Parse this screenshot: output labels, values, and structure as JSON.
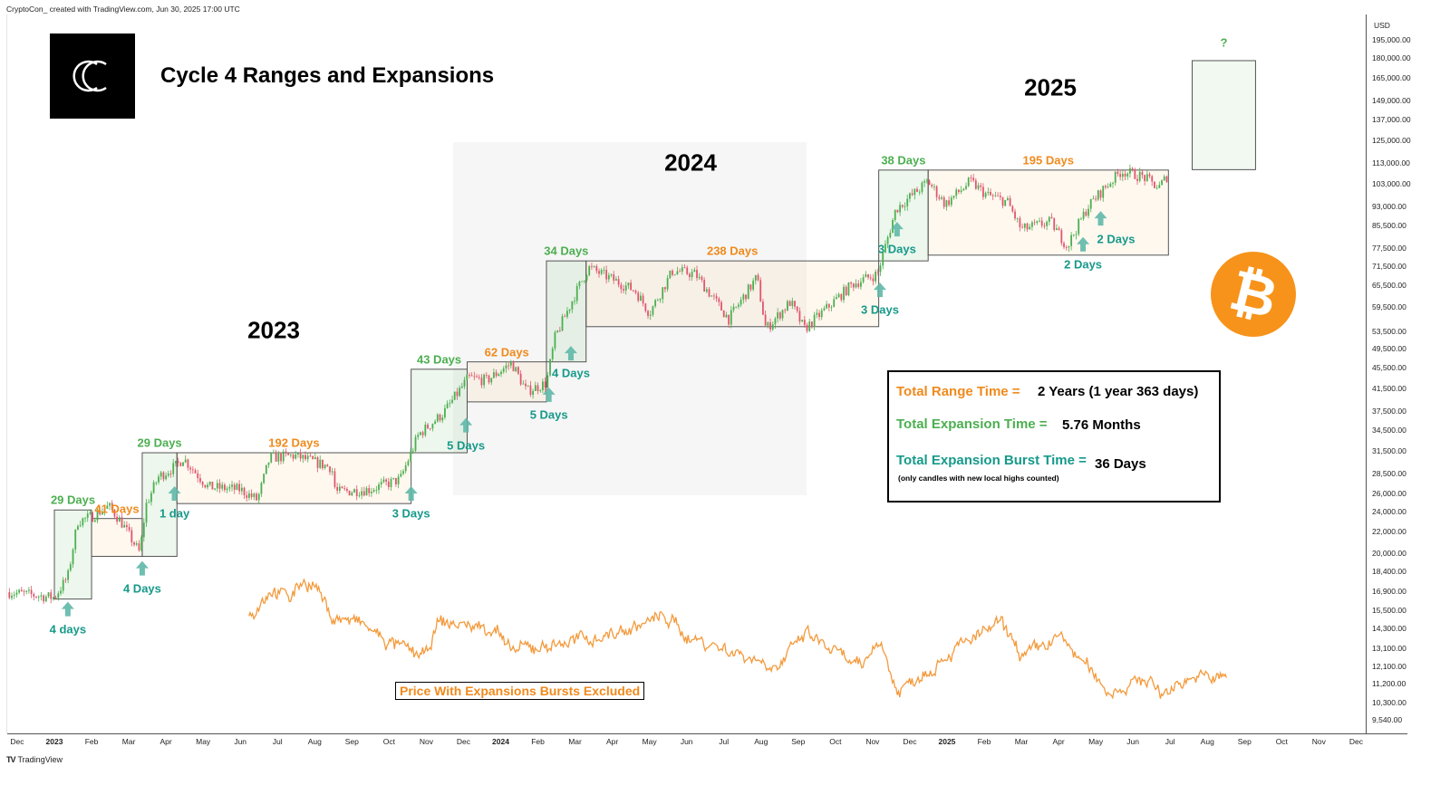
{
  "header": {
    "attribution": "CryptoCon_ created with TradingView.com, Jun 30, 2025 17:00 UTC"
  },
  "title": "Cycle 4 Ranges and Expansions",
  "year_labels": [
    "2023",
    "2024",
    "2025"
  ],
  "stats": {
    "range_label": "Total Range Time =",
    "range_value": "2 Years (1 year 363 days)",
    "expansion_label": "Total Expansion Time =",
    "expansion_value": "5.76 Months",
    "burst_label": "Total Expansion Burst Time =",
    "burst_value": "36 Days",
    "burst_note": "(only candles with new local highs counted)"
  },
  "colors": {
    "range": "#f08a1c",
    "expansion": "#4caf50",
    "burst": "#16998a",
    "up": "#4caf50",
    "down": "#e0566e",
    "excluded_line": "#f39a3c",
    "bitcoin": "#f7931a"
  },
  "icons": {
    "logo": "cryptocon-cc-logo",
    "bitcoin": "bitcoin-icon",
    "burst": "arrow-up-icon",
    "footer": "tradingview-logo"
  },
  "bitcoin_glyph": "₿",
  "footer": {
    "brand": "TradingView"
  },
  "chart_data": {
    "type": "candlestick",
    "title": "Cycle 4 Ranges and Expansions",
    "yaxis": {
      "unit": "USD",
      "scale": "log",
      "ticks": [
        195000,
        180000,
        165000,
        149000,
        137000,
        125000,
        113000,
        103000,
        93000,
        85500,
        77500,
        71500,
        65500,
        59500,
        53500,
        49500,
        45500,
        41500,
        37500,
        34500,
        31500,
        28500,
        26000,
        24000,
        22000,
        20000,
        18400,
        16900,
        15500,
        14300,
        13100,
        12100,
        11200,
        10300,
        9540
      ],
      "tick_labels": [
        "195,000.00",
        "180,000.00",
        "165,000.00",
        "149,000.00",
        "137,000.00",
        "125,000.00",
        "113,000.00",
        "103,000.00",
        "93,000.00",
        "85,500.00",
        "77,500.00",
        "71,500.00",
        "65,500.00",
        "59,500.00",
        "53,500.00",
        "49,500.00",
        "45,500.00",
        "41,500.00",
        "37,500.00",
        "34,500.00",
        "31,500.00",
        "28,500.00",
        "26,000.00",
        "24,000.00",
        "22,000.00",
        "20,000.00",
        "18,400.00",
        "16,900.00",
        "15,500.00",
        "14,300.00",
        "13,100.00",
        "12,100.00",
        "11,200.00",
        "10,300.00",
        "9,540.00"
      ]
    },
    "xaxis": {
      "ticks": [
        {
          "label": "Dec",
          "date": "2022-12-01"
        },
        {
          "label": "2023",
          "date": "2023-01-01",
          "bold": true
        },
        {
          "label": "Feb",
          "date": "2023-02-01"
        },
        {
          "label": "Mar",
          "date": "2023-03-01"
        },
        {
          "label": "Apr",
          "date": "2023-04-01"
        },
        {
          "label": "May",
          "date": "2023-05-01"
        },
        {
          "label": "Jun",
          "date": "2023-06-01"
        },
        {
          "label": "Jul",
          "date": "2023-07-01"
        },
        {
          "label": "Aug",
          "date": "2023-08-01"
        },
        {
          "label": "Sep",
          "date": "2023-09-01"
        },
        {
          "label": "Oct",
          "date": "2023-10-01"
        },
        {
          "label": "Nov",
          "date": "2023-11-01"
        },
        {
          "label": "Dec",
          "date": "2023-12-01"
        },
        {
          "label": "2024",
          "date": "2024-01-01",
          "bold": true
        },
        {
          "label": "Feb",
          "date": "2024-02-01"
        },
        {
          "label": "Mar",
          "date": "2024-03-01"
        },
        {
          "label": "Apr",
          "date": "2024-04-01"
        },
        {
          "label": "May",
          "date": "2024-05-01"
        },
        {
          "label": "Jun",
          "date": "2024-06-01"
        },
        {
          "label": "Jul",
          "date": "2024-07-01"
        },
        {
          "label": "Aug",
          "date": "2024-08-01"
        },
        {
          "label": "Sep",
          "date": "2024-09-01"
        },
        {
          "label": "Oct",
          "date": "2024-10-01"
        },
        {
          "label": "Nov",
          "date": "2024-11-01"
        },
        {
          "label": "Dec",
          "date": "2024-12-01"
        },
        {
          "label": "2025",
          "date": "2025-01-01",
          "bold": true
        },
        {
          "label": "Feb",
          "date": "2025-02-01"
        },
        {
          "label": "Mar",
          "date": "2025-03-01"
        },
        {
          "label": "Apr",
          "date": "2025-04-01"
        },
        {
          "label": "May",
          "date": "2025-05-01"
        },
        {
          "label": "Jun",
          "date": "2025-06-01"
        },
        {
          "label": "Jul",
          "date": "2025-07-01"
        },
        {
          "label": "Aug",
          "date": "2025-08-01"
        },
        {
          "label": "Sep",
          "date": "2025-09-01"
        },
        {
          "label": "Oct",
          "date": "2025-10-01"
        },
        {
          "label": "Nov",
          "date": "2025-11-01"
        },
        {
          "label": "Dec",
          "date": "2025-12-01"
        }
      ]
    },
    "price_path": [
      [
        "2022-11-25",
        16800
      ],
      [
        "2023-01-01",
        16400
      ],
      [
        "2023-01-12",
        18000
      ],
      [
        "2023-01-20",
        23000
      ],
      [
        "2023-02-01",
        23500
      ],
      [
        "2023-02-15",
        24600
      ],
      [
        "2023-02-25",
        23000
      ],
      [
        "2023-03-10",
        20000
      ],
      [
        "2023-03-15",
        24700
      ],
      [
        "2023-03-25",
        28000
      ],
      [
        "2023-04-10",
        29500
      ],
      [
        "2023-04-15",
        30500
      ],
      [
        "2023-05-05",
        26800
      ],
      [
        "2023-06-01",
        26500
      ],
      [
        "2023-06-15",
        25300
      ],
      [
        "2023-06-25",
        30500
      ],
      [
        "2023-07-15",
        30800
      ],
      [
        "2023-08-15",
        29200
      ],
      [
        "2023-08-18",
        26200
      ],
      [
        "2023-09-15",
        26500
      ],
      [
        "2023-10-10",
        27700
      ],
      [
        "2023-10-25",
        33800
      ],
      [
        "2023-11-15",
        37200
      ],
      [
        "2023-12-05",
        43500
      ],
      [
        "2023-12-20",
        43000
      ],
      [
        "2024-01-10",
        46500
      ],
      [
        "2024-01-22",
        41000
      ],
      [
        "2024-02-08",
        42500
      ],
      [
        "2024-02-15",
        52000
      ],
      [
        "2024-03-01",
        63000
      ],
      [
        "2024-03-12",
        71000
      ],
      [
        "2024-03-28",
        68000
      ],
      [
        "2024-04-20",
        64000
      ],
      [
        "2024-05-01",
        58000
      ],
      [
        "2024-05-20",
        70000
      ],
      [
        "2024-06-08",
        69000
      ],
      [
        "2024-07-05",
        56500
      ],
      [
        "2024-07-28",
        68000
      ],
      [
        "2024-08-05",
        54000
      ],
      [
        "2024-08-25",
        61000
      ],
      [
        "2024-09-06",
        54000
      ],
      [
        "2024-10-15",
        66000
      ],
      [
        "2024-11-05",
        69000
      ],
      [
        "2024-11-20",
        92000
      ],
      [
        "2024-12-01",
        97000
      ],
      [
        "2024-12-16",
        104000
      ],
      [
        "2024-12-30",
        94000
      ],
      [
        "2025-01-20",
        104000
      ],
      [
        "2025-02-03",
        98000
      ],
      [
        "2025-02-20",
        95000
      ],
      [
        "2025-03-01",
        84000
      ],
      [
        "2025-03-25",
        87000
      ],
      [
        "2025-04-08",
        78000
      ],
      [
        "2025-04-25",
        93000
      ],
      [
        "2025-05-08",
        101000
      ],
      [
        "2025-05-22",
        109000
      ],
      [
        "2025-06-10",
        106000
      ],
      [
        "2025-06-22",
        101000
      ],
      [
        "2025-06-30",
        107500
      ]
    ],
    "excluded_series": {
      "name": "Price With Expansions Bursts Excluded",
      "points": [
        [
          "2023-06-08",
          15100
        ],
        [
          "2023-06-26",
          17100
        ],
        [
          "2023-07-11",
          16400
        ],
        [
          "2023-07-22",
          17800
        ],
        [
          "2023-08-03",
          17100
        ],
        [
          "2023-08-14",
          15100
        ],
        [
          "2023-09-09",
          14600
        ],
        [
          "2023-10-01",
          13400
        ],
        [
          "2023-10-31",
          12600
        ],
        [
          "2023-11-11",
          14700
        ],
        [
          "2023-12-29",
          14300
        ],
        [
          "2024-01-06",
          12900
        ],
        [
          "2024-02-20",
          13400
        ],
        [
          "2024-04-04",
          14000
        ],
        [
          "2024-05-14",
          15100
        ],
        [
          "2024-06-02",
          13800
        ],
        [
          "2024-08-16",
          12100
        ],
        [
          "2024-09-07",
          14000
        ],
        [
          "2024-10-22",
          11900
        ],
        [
          "2024-11-06",
          13800
        ],
        [
          "2024-11-21",
          10800
        ],
        [
          "2025-01-04",
          12900
        ],
        [
          "2025-02-14",
          14600
        ],
        [
          "2025-03-03",
          12600
        ],
        [
          "2025-04-02",
          13800
        ],
        [
          "2025-05-12",
          10800
        ],
        [
          "2025-06-15",
          11500
        ],
        [
          "2025-06-23",
          10600
        ],
        [
          "2025-07-14",
          11500
        ],
        [
          "2025-08-17",
          11500
        ]
      ]
    },
    "expansions": [
      {
        "label": "29 Days",
        "start": "2023-01-01",
        "end": "2023-02-01",
        "low": 16300,
        "high": 24200
      },
      {
        "label": "29 Days",
        "start": "2023-03-12",
        "end": "2023-04-10",
        "low": 19700,
        "high": 31200
      },
      {
        "label": "43 Days",
        "start": "2023-10-19",
        "end": "2023-12-04",
        "low": 31200,
        "high": 45200
      },
      {
        "label": "34 Days",
        "start": "2024-02-08",
        "end": "2024-03-10",
        "low": 46700,
        "high": 73100
      },
      {
        "label": "38 Days",
        "start": "2024-11-06",
        "end": "2024-12-16",
        "low": 73100,
        "high": 109400
      }
    ],
    "ranges": [
      {
        "label": "41 Days",
        "start": "2023-02-01",
        "end": "2023-03-12",
        "low": 19700,
        "high": 23300
      },
      {
        "label": "192 Days",
        "start": "2023-04-10",
        "end": "2023-10-19",
        "low": 24900,
        "high": 31200
      },
      {
        "label": "62 Days",
        "start": "2023-12-04",
        "end": "2024-02-08",
        "low": 39100,
        "high": 46700
      },
      {
        "label": "238 Days",
        "start": "2024-03-10",
        "end": "2024-11-06",
        "low": 54600,
        "high": 73100
      },
      {
        "label": "195 Days",
        "start": "2024-12-16",
        "end": "2025-06-30",
        "low": 75000,
        "high": 109400
      }
    ],
    "projection": {
      "label": "?",
      "start": "2025-07-19",
      "end": "2025-09-10",
      "low": 109600,
      "high": 177800
    },
    "bursts": [
      {
        "label": "4 days",
        "date": "2023-01-12",
        "price": 16100
      },
      {
        "label": "4 Days",
        "date": "2023-03-12",
        "price": 19300
      },
      {
        "label": "1 day",
        "date": "2023-04-08",
        "price": 26900
      },
      {
        "label": "3 Days",
        "date": "2023-10-19",
        "price": 26900
      },
      {
        "label": "5 Days",
        "date": "2023-12-03",
        "price": 36400
      },
      {
        "label": "5 Days",
        "date": "2024-02-10",
        "price": 41700
      },
      {
        "label": "4 Days",
        "date": "2024-02-28",
        "price": 50100
      },
      {
        "label": "3 Days",
        "date": "2024-11-07",
        "price": 66400
      },
      {
        "label": "3 Days",
        "date": "2024-11-21",
        "price": 86900
      },
      {
        "label": "2 Days",
        "date": "2025-04-21",
        "price": 81300
      },
      {
        "label": "2 Days",
        "date": "2025-05-05",
        "price": 91200,
        "label_side": "right"
      }
    ]
  }
}
